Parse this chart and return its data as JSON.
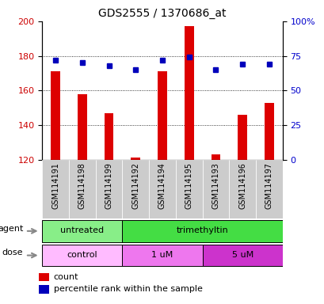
{
  "title": "GDS2555 / 1370686_at",
  "samples": [
    "GSM114191",
    "GSM114198",
    "GSM114199",
    "GSM114192",
    "GSM114194",
    "GSM114195",
    "GSM114193",
    "GSM114196",
    "GSM114197"
  ],
  "counts": [
    171,
    158,
    147,
    121,
    171,
    197,
    123,
    146,
    153
  ],
  "percentile_ranks": [
    72,
    70,
    68,
    65,
    72,
    74,
    65,
    69,
    69
  ],
  "ylim_left": [
    120,
    200
  ],
  "ylim_right": [
    0,
    100
  ],
  "yticks_left": [
    120,
    140,
    160,
    180,
    200
  ],
  "yticks_right": [
    0,
    25,
    50,
    75,
    100
  ],
  "ytick_labels_right": [
    "0",
    "25",
    "50",
    "75",
    "100%"
  ],
  "bar_color": "#dd0000",
  "dot_color": "#0000bb",
  "agent_groups": [
    {
      "label": "untreated",
      "start": 0,
      "end": 3,
      "color": "#88ee88"
    },
    {
      "label": "trimethyltin",
      "start": 3,
      "end": 9,
      "color": "#44dd44"
    }
  ],
  "dose_groups": [
    {
      "label": "control",
      "start": 0,
      "end": 3,
      "color": "#ffbbff"
    },
    {
      "label": "1 uM",
      "start": 3,
      "end": 6,
      "color": "#ee77ee"
    },
    {
      "label": "5 uM",
      "start": 6,
      "end": 9,
      "color": "#cc33cc"
    }
  ],
  "agent_label": "agent",
  "dose_label": "dose",
  "legend_count_label": "count",
  "legend_pct_label": "percentile rank within the sample",
  "background_color": "#ffffff",
  "plot_bg_color": "#ffffff",
  "xtick_bg_color": "#cccccc",
  "grid_color": "#000000",
  "tick_label_color_left": "#cc0000",
  "tick_label_color_right": "#0000cc"
}
